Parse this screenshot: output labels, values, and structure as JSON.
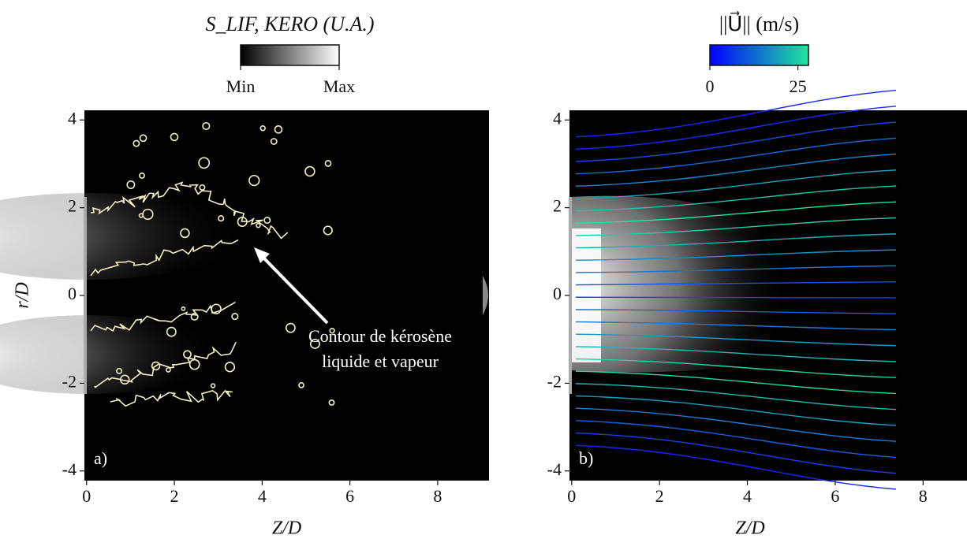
{
  "chart_data": [
    {
      "type": "image",
      "panel_label": "a)",
      "colorbar_label": "S_LIF, KERO (U.A.)",
      "colorbar_colors": [
        "#000000",
        "#ffffff"
      ],
      "colorbar_ticklabels": [
        "Min",
        "Max"
      ],
      "xlabel": "Z/D",
      "ylabel": "r/D",
      "xlim": [
        -0.05,
        9.17
      ],
      "ylim": [
        -4.22,
        4.22
      ],
      "xticks": [
        0,
        2,
        4,
        6,
        8
      ],
      "yticks": [
        -4,
        -2,
        0,
        2,
        4
      ],
      "contour_color": "#f5f0c4",
      "annotation": [
        "Contour de kérosène",
        "liquide et vapeur"
      ]
    },
    {
      "type": "image",
      "panel_label": "b)",
      "colorbar_label": "||U⃗|| (m/s)",
      "colorbar_colors": [
        "#0000ff",
        "#1ee89a"
      ],
      "clim": [
        0,
        28
      ],
      "colorbar_ticks": [
        0,
        25
      ],
      "xlabel": "Z/D",
      "xlim": [
        -0.05,
        9.0
      ],
      "ylim": [
        -4.22,
        4.22
      ],
      "xticks": [
        0,
        2,
        4,
        6,
        8
      ],
      "yticks": [
        -4,
        -2,
        0,
        2,
        4
      ]
    }
  ]
}
